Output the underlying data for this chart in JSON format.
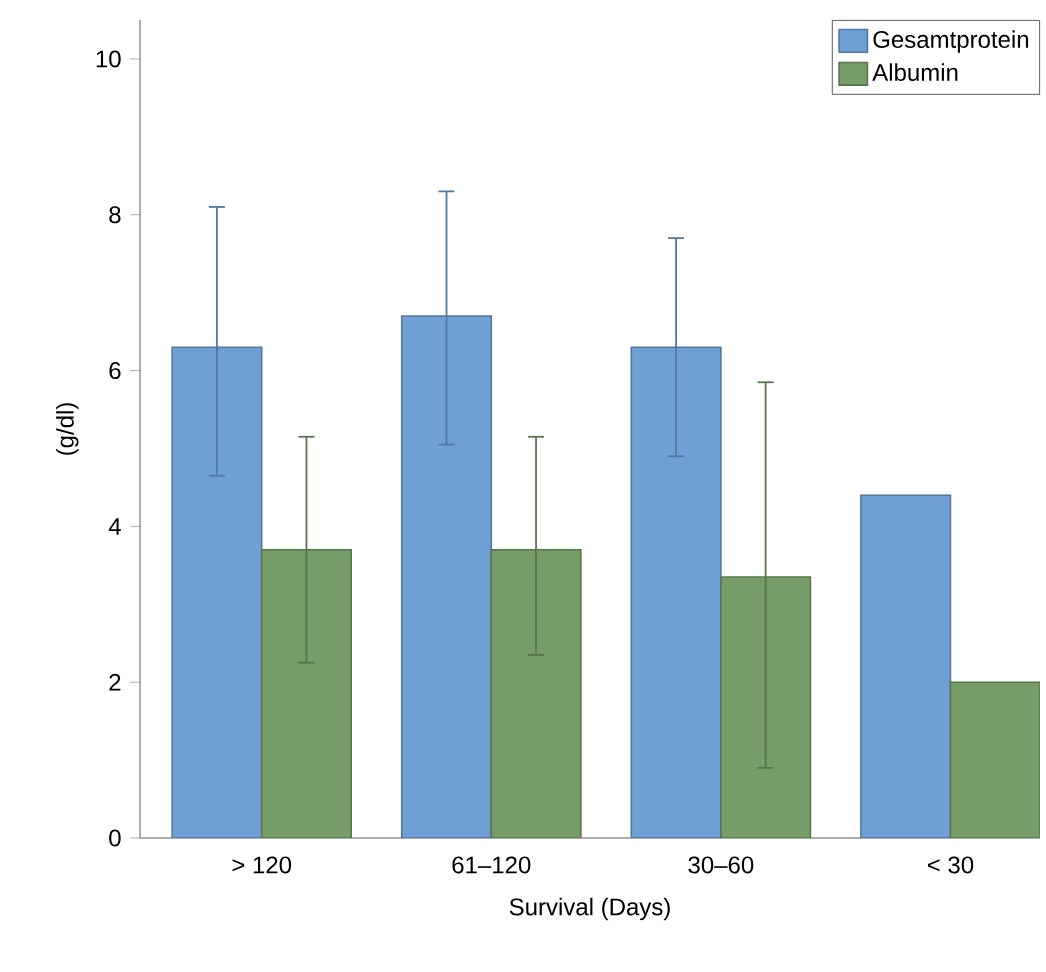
{
  "chart_data": {
    "type": "bar",
    "xlabel": "Survival (Days)",
    "ylabel": "(g/dl)",
    "categories": [
      "> 120",
      "61–120",
      "30–60",
      "< 30"
    ],
    "series": [
      {
        "name": "Gesamtprotein",
        "color": "#6f9fd4",
        "values": [
          6.3,
          6.7,
          6.3,
          4.4
        ],
        "errors": [
          [
            4.65,
            8.1
          ],
          [
            5.05,
            8.3
          ],
          [
            4.9,
            7.7
          ],
          null
        ]
      },
      {
        "name": "Albumin",
        "color": "#769d68",
        "values": [
          3.7,
          3.7,
          3.35,
          2.0
        ],
        "errors": [
          [
            2.25,
            5.15
          ],
          [
            2.35,
            5.15
          ],
          [
            0.9,
            5.85
          ],
          null
        ]
      }
    ],
    "ylim": [
      0,
      10.5
    ],
    "yticks": [
      0,
      2,
      4,
      6,
      8,
      10
    ],
    "grid": false,
    "legend": "top right"
  }
}
